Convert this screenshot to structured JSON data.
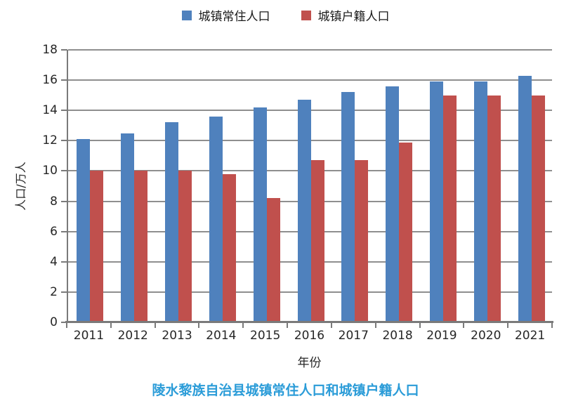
{
  "legend": {
    "items": [
      {
        "label": "城镇常住人口",
        "color": "#4f81bd"
      },
      {
        "label": "城镇户籍人口",
        "color": "#c0504d"
      }
    ]
  },
  "chart_data": {
    "type": "bar",
    "title": "陵水黎族自治县城镇常住人口和城镇户籍人口",
    "xlabel": "年份",
    "ylabel": "人口/万人",
    "categories": [
      "2011",
      "2012",
      "2013",
      "2014",
      "2015",
      "2016",
      "2017",
      "2018",
      "2019",
      "2020",
      "2021"
    ],
    "series": [
      {
        "name": "城镇常住人口",
        "color": "#4f81bd",
        "values": [
          12.1,
          12.5,
          13.2,
          13.6,
          14.2,
          14.7,
          15.2,
          15.6,
          15.9,
          15.9,
          16.3
        ]
      },
      {
        "name": "城镇户籍人口",
        "color": "#c0504d",
        "values": [
          10.0,
          10.0,
          10.0,
          9.8,
          8.2,
          10.7,
          10.7,
          11.9,
          15.0,
          15.0,
          15.0
        ]
      }
    ],
    "ylim": [
      0,
      18
    ],
    "ytick_step": 2,
    "yticks": [
      0,
      2,
      4,
      6,
      8,
      10,
      12,
      14,
      16,
      18
    ],
    "grid": true,
    "legend_position": "top"
  },
  "colors": {
    "gridline": "#8f8f8f",
    "axis": "#7a7a7a",
    "tick_text": "#262626",
    "title_text": "#2b9cd8"
  }
}
